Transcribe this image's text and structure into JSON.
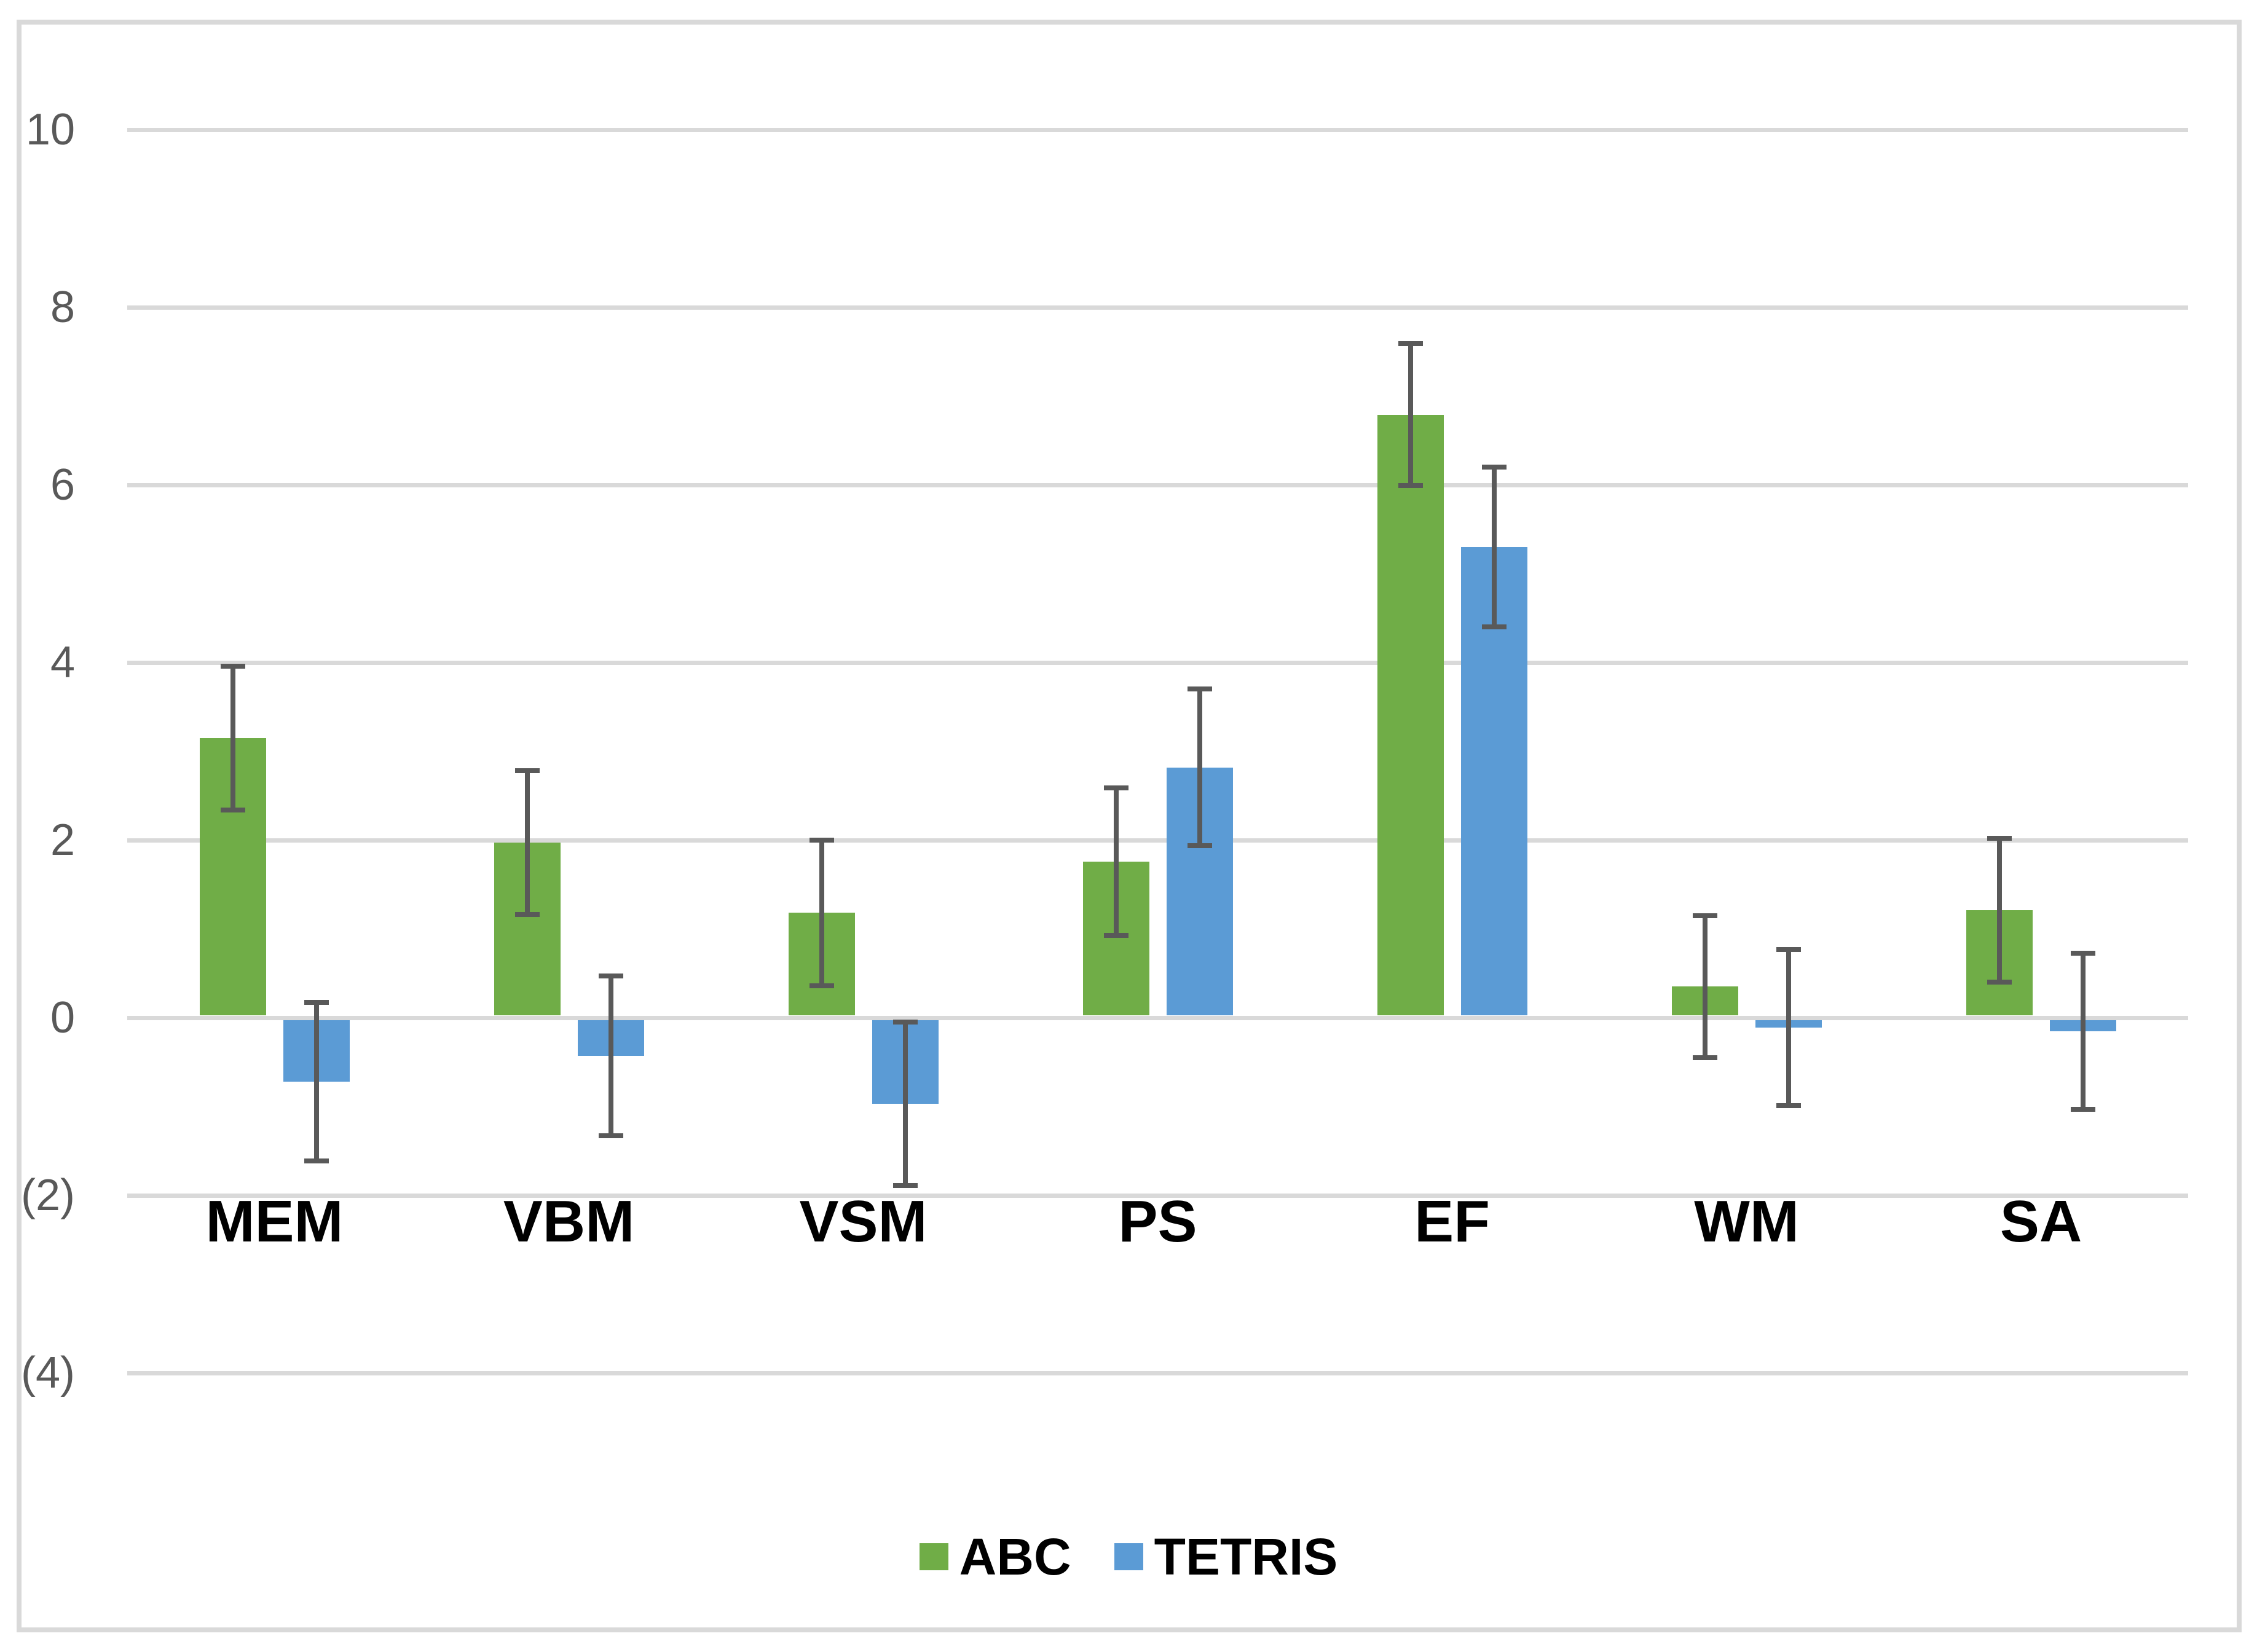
{
  "chart_data": {
    "type": "bar",
    "title": "",
    "categories": [
      "MEM",
      "VBM",
      "VSM",
      "PS",
      "EF",
      "WM",
      "SA"
    ],
    "series": [
      {
        "name": "ABC",
        "color": "#70AD47",
        "values": [
          3.15,
          1.97,
          1.18,
          1.76,
          6.79,
          0.35,
          1.21
        ],
        "errors": [
          0.81,
          0.81,
          0.82,
          0.83,
          0.8,
          0.8,
          0.81
        ]
      },
      {
        "name": "TETRIS",
        "color": "#5B9BD5",
        "values": [
          -0.72,
          -0.43,
          -0.97,
          2.82,
          5.3,
          -0.11,
          -0.15
        ],
        "errors": [
          0.89,
          0.9,
          0.92,
          0.88,
          0.9,
          0.88,
          0.88
        ]
      }
    ],
    "y_axis": {
      "min": -4,
      "max": 10,
      "step": 2,
      "tick_values": [
        10,
        8,
        6,
        4,
        2,
        0,
        -2,
        -4
      ],
      "tick_labels": [
        "10",
        "8",
        "6",
        "4",
        "2",
        "0",
        "(2)",
        "(4)"
      ],
      "label_color": "#595959"
    },
    "grid": true,
    "gridline_color": "#d9d9d9",
    "error_bar_color": "#595959",
    "legend_position": "bottom",
    "category_label_color": "#000000"
  }
}
